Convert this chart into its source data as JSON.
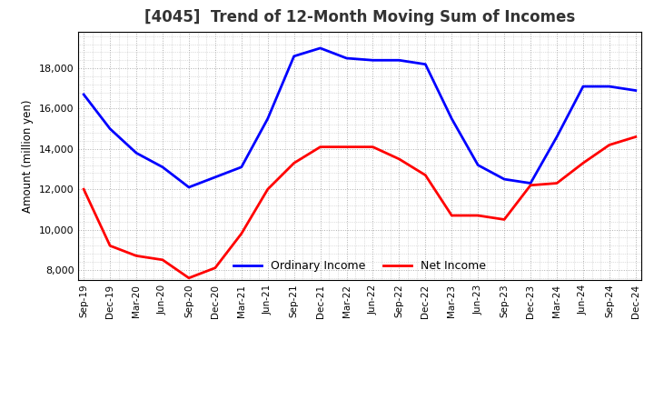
{
  "title": "[4045]  Trend of 12-Month Moving Sum of Incomes",
  "ylabel": "Amount (million yen)",
  "x_labels": [
    "Sep-19",
    "Dec-19",
    "Mar-20",
    "Jun-20",
    "Sep-20",
    "Dec-20",
    "Mar-21",
    "Jun-21",
    "Sep-21",
    "Dec-21",
    "Mar-22",
    "Jun-22",
    "Sep-22",
    "Dec-22",
    "Mar-23",
    "Jun-23",
    "Sep-23",
    "Dec-23",
    "Mar-24",
    "Jun-24",
    "Sep-24",
    "Dec-24"
  ],
  "ordinary_income": [
    16700,
    15000,
    13800,
    13100,
    12100,
    12600,
    13100,
    15500,
    18600,
    19000,
    18500,
    18400,
    18400,
    18200,
    15500,
    13200,
    12500,
    12300,
    14600,
    17100,
    17100,
    16900
  ],
  "net_income": [
    12000,
    9200,
    8700,
    8500,
    7600,
    8100,
    9800,
    12000,
    13300,
    14100,
    14100,
    14100,
    13500,
    12700,
    10700,
    10700,
    10500,
    12200,
    12300,
    13300,
    14200,
    14600
  ],
  "ordinary_color": "#0000FF",
  "net_color": "#FF0000",
  "ylim_min": 7500,
  "ylim_max": 19800,
  "yticks": [
    8000,
    10000,
    12000,
    14000,
    16000,
    18000
  ],
  "background_color": "#FFFFFF",
  "grid_color": "#999999",
  "title_fontsize": 12,
  "title_color": "#333333",
  "legend_labels": [
    "Ordinary Income",
    "Net Income"
  ]
}
